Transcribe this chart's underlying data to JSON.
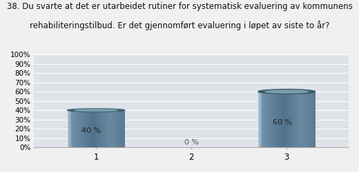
{
  "title_line1": "38. Du svarte at det er utarbeidet rutiner for systematisk evaluering av kommunens",
  "title_line2": "rehabiliteringstilbud. Er det gjennomført evaluering i løpet av siste to år?",
  "categories": [
    1,
    2,
    3
  ],
  "values": [
    40,
    0,
    60
  ],
  "plot_bg_color": "#dde3e8",
  "fig_bg_color": "#f0f0f0",
  "ylim": [
    0,
    100
  ],
  "yticks": [
    0,
    10,
    20,
    30,
    40,
    50,
    60,
    70,
    80,
    90,
    100
  ],
  "ytick_labels": [
    "0%",
    "10%",
    "20%",
    "30%",
    "40%",
    "50%",
    "60%",
    "70%",
    "80%",
    "90%",
    "100%"
  ],
  "bar_width": 0.6,
  "label_fontsize": 8,
  "title_fontsize": 8.5
}
